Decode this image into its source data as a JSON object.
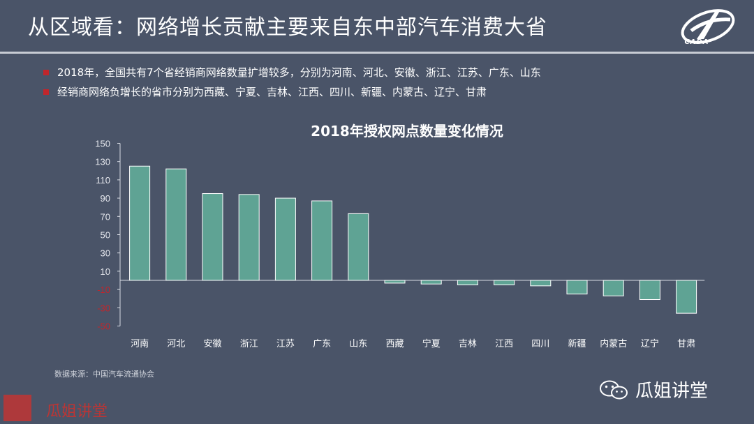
{
  "slide": {
    "title": "从区域看：网络增长贡献主要来自东中部汽车消费大省",
    "logo_text": "CADA",
    "bullets": [
      "2018年，全国共有7个省经销商网络数量扩增较多，分别为河南、河北、安徽、浙江、江苏、广东、山东",
      "经销商网络负增长的省市分别为西藏、宁夏、吉林、江西、四川、新疆、内蒙古、辽宁、甘肃"
    ],
    "source": "数据来源：中国汽车流通协会",
    "watermark_left": "瓜姐讲堂",
    "watermark_right": "瓜姐讲堂",
    "wechat_icon": "wechat-icon",
    "colors": {
      "background": "#4a5468",
      "bar": "#5fa394",
      "bar_border": "#ffffff",
      "negative_tick": "#c0262c",
      "bullet": "#c0262c"
    }
  },
  "chart_data": {
    "type": "bar",
    "title": "2018年授权网点数量变化情况",
    "categories": [
      "河南",
      "河北",
      "安徽",
      "浙江",
      "江苏",
      "广东",
      "山东",
      "西藏",
      "宁夏",
      "吉林",
      "江西",
      "四川",
      "新疆",
      "内蒙古",
      "辽宁",
      "甘肃"
    ],
    "values": [
      125,
      122,
      95,
      94,
      90,
      87,
      73,
      -3,
      -4,
      -5,
      -5,
      -6,
      -15,
      -17,
      -21,
      -36
    ],
    "yticks": [
      150,
      130,
      110,
      90,
      70,
      50,
      30,
      10,
      -10,
      -30,
      -50
    ],
    "yticks_labels": [
      "150",
      "130",
      "110",
      "90",
      "70",
      "50",
      "30",
      "10",
      "-10",
      "-30",
      "-50"
    ],
    "ylim": [
      -50,
      150
    ],
    "xlabel": "",
    "ylabel": ""
  }
}
